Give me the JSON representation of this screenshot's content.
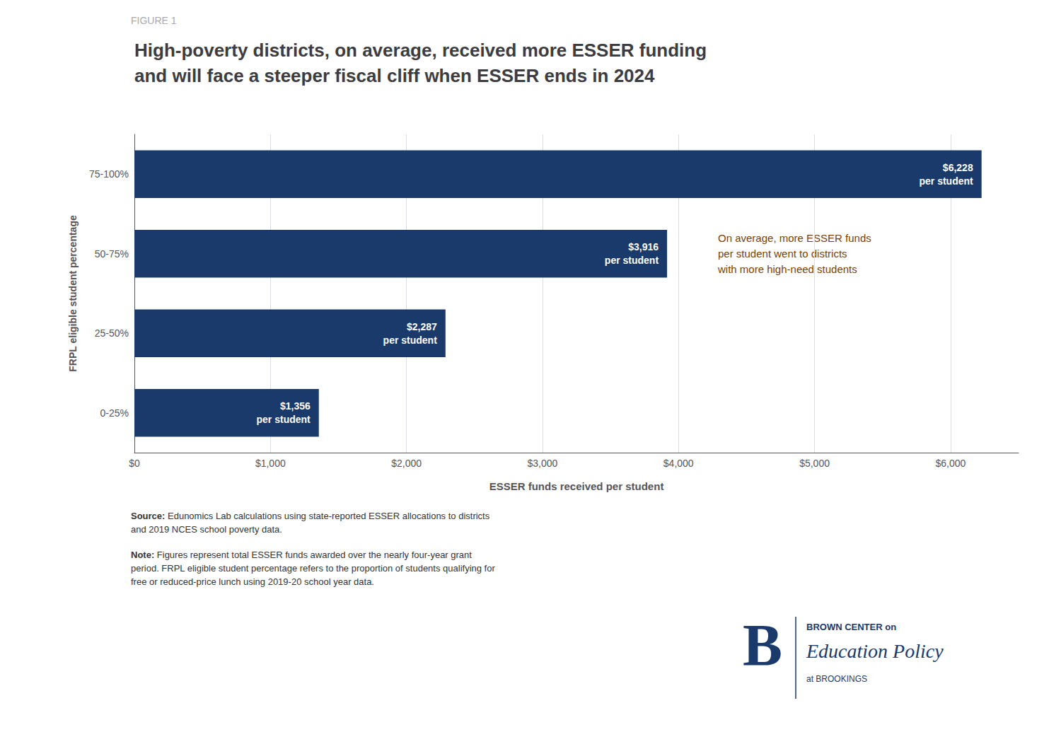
{
  "chart_data": {
    "type": "bar",
    "orientation": "horizontal",
    "figure_label": "FIGURE 1",
    "figure_label_color": "#aaaaaa",
    "title": "High-poverty districts, on average, received more ESSER funding\nand will face a steeper fiscal cliff when ESSER ends in 2024",
    "categories": [
      "0-25%",
      "25-50%",
      "50-75%",
      "75-100%"
    ],
    "values": [
      1356,
      2287,
      3916,
      6228
    ],
    "color": "#1a3a6b",
    "data_labels": true,
    "value_labels": [
      "$1,356\nper student",
      "$2,287\nper student",
      "$3,916\nper student",
      "$6,228\nper student"
    ],
    "xlabel": "ESSER funds received per student",
    "ylabel": "FRPL eligible student percentage",
    "xlim": [
      0,
      6500
    ],
    "xticks": [
      {
        "value": 0,
        "label": "$0"
      },
      {
        "value": 1000,
        "label": "$1,000"
      },
      {
        "value": 2000,
        "label": "$2,000"
      },
      {
        "value": 3000,
        "label": "$3,000"
      },
      {
        "value": 4000,
        "label": "$4,000"
      },
      {
        "value": 5000,
        "label": "$5,000"
      },
      {
        "value": 6000,
        "label": "$6,000"
      }
    ],
    "grid": true,
    "annotations": [
      {
        "text": "On average, more ESSER funds\nper student went to districts\nwith more high-need students",
        "color": "#7B3F00"
      }
    ],
    "source": "Source: Edunomics Lab calculations using state-reported ESSER allocations to districts\nand 2019 NCES school poverty data.",
    "note": "Note: Figures represent total ESSER funds awarded over the nearly four-year grant\nperiod. FRPL eligible student percentage refers to the proportion of students qualifying for\nfree or reduced-price lunch using 2019-20 school year data.",
    "logo": {
      "mark": "B",
      "lines": [
        "BROWN CENTER on",
        "Education Policy",
        "at BROOKINGS"
      ],
      "color": "#1a3a6b"
    }
  }
}
